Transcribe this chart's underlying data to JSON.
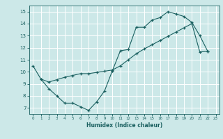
{
  "title": "",
  "xlabel": "Humidex (Indice chaleur)",
  "ylabel": "",
  "bg_color": "#cce8e8",
  "line_color": "#1a6060",
  "grid_color": "#ffffff",
  "xlim": [
    -0.5,
    23.5
  ],
  "ylim": [
    6.5,
    15.5
  ],
  "xticks": [
    0,
    1,
    2,
    3,
    4,
    5,
    6,
    7,
    8,
    9,
    10,
    11,
    12,
    13,
    14,
    15,
    16,
    17,
    18,
    19,
    20,
    21,
    22,
    23
  ],
  "yticks": [
    7,
    8,
    9,
    10,
    11,
    12,
    13,
    14,
    15
  ],
  "line1_x": [
    0,
    1,
    2,
    3,
    4,
    5,
    6,
    7,
    8,
    9,
    10
  ],
  "line1_y": [
    10.5,
    9.4,
    8.6,
    8.0,
    7.4,
    7.4,
    7.1,
    6.8,
    7.5,
    8.4,
    10.1
  ],
  "line2_x": [
    1,
    2,
    3,
    4,
    5,
    6,
    7,
    8,
    9,
    10,
    11,
    12,
    13,
    14,
    15,
    16,
    17,
    18,
    19,
    20,
    21,
    22
  ],
  "line2_y": [
    9.4,
    9.15,
    9.35,
    9.55,
    9.7,
    9.85,
    9.85,
    9.95,
    10.05,
    10.15,
    10.5,
    11.0,
    11.5,
    11.9,
    12.25,
    12.6,
    12.95,
    13.3,
    13.65,
    14.0,
    11.65,
    11.7
  ],
  "line3_x": [
    10,
    11,
    12,
    13,
    14,
    15,
    16,
    17,
    18,
    19,
    20,
    21,
    22
  ],
  "line3_y": [
    10.1,
    11.75,
    11.85,
    13.7,
    13.7,
    14.3,
    14.5,
    15.0,
    14.8,
    14.6,
    14.1,
    13.0,
    11.7
  ]
}
